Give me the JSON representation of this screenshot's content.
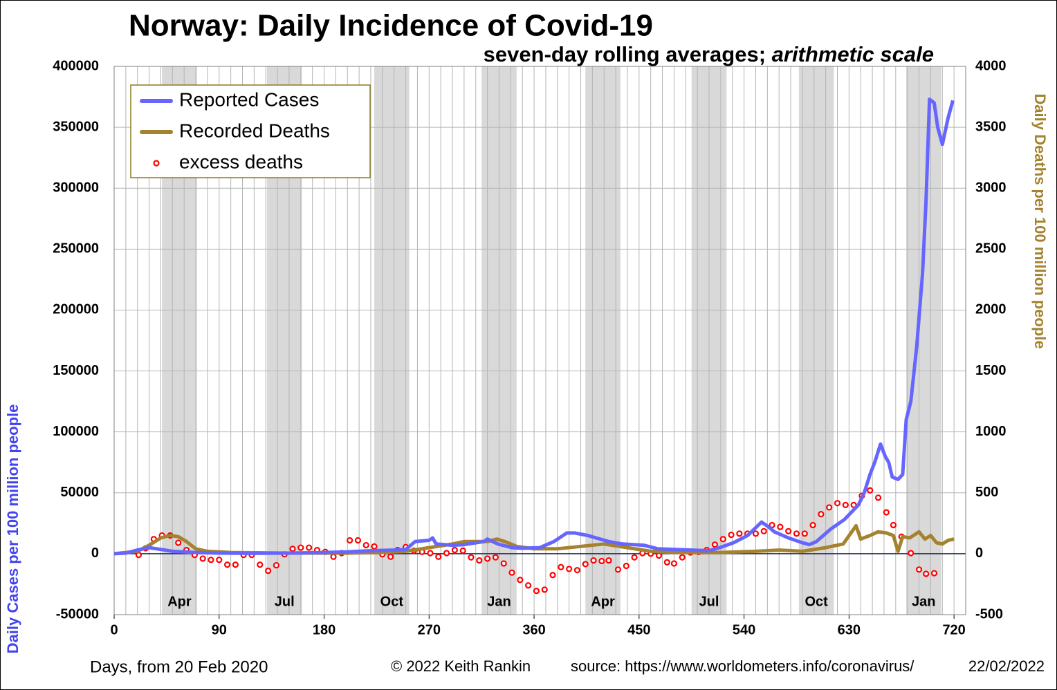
{
  "chart_data": {
    "type": "line",
    "title": "Norway: Daily Incidence of Covid-19",
    "subtitle": [
      "seven-day rolling averages; ",
      "arithmetic scale"
    ],
    "y_label": "Daily Cases per 100 million people",
    "y2_label": "Daily Deaths per 100 million people",
    "x_label": "Days,  from 20 Feb 2020",
    "credit": "© 2022  Keith Rankin",
    "source": "source: https://www.worldometers.info/coronavirus/",
    "date": "22/02/2022",
    "xlim": [
      0,
      730
    ],
    "xticks": [
      0,
      90,
      180,
      270,
      360,
      450,
      540,
      630,
      720
    ],
    "x_grid_step": 10,
    "ylim": [
      -50000,
      400000
    ],
    "yticks": [
      -50000,
      0,
      50000,
      100000,
      150000,
      200000,
      250000,
      300000,
      350000,
      400000
    ],
    "y2lim": [
      -500,
      4000
    ],
    "y2ticks": [
      -500,
      0,
      500,
      1000,
      1500,
      2000,
      2500,
      3000,
      3500,
      4000
    ],
    "grid": true,
    "legend": "top-left",
    "month_bands": [
      {
        "label": "Apr",
        "start": 41,
        "end": 71
      },
      {
        "label": "Jul",
        "start": 131,
        "end": 161
      },
      {
        "label": "Oct",
        "start": 223,
        "end": 253
      },
      {
        "label": "Jan",
        "start": 315,
        "end": 345
      },
      {
        "label": "Apr",
        "start": 404,
        "end": 434
      },
      {
        "label": "Jul",
        "start": 495,
        "end": 525
      },
      {
        "label": "Oct",
        "start": 587,
        "end": 617
      },
      {
        "label": "Jan",
        "start": 679,
        "end": 709
      }
    ],
    "series": [
      {
        "name": "Reported Cases",
        "color": "#6666ff",
        "mark": "line",
        "axis": "y",
        "x": [
          0,
          10,
          20,
          30,
          40,
          50,
          60,
          70,
          90,
          120,
          150,
          180,
          200,
          220,
          240,
          250,
          258,
          270,
          273,
          276,
          290,
          300,
          317,
          320,
          329,
          341,
          350,
          365,
          377,
          388,
          395,
          406,
          424,
          436,
          454,
          466,
          495,
          510,
          519,
          531,
          543,
          555,
          561,
          566,
          578,
          590,
          596,
          602,
          614,
          626,
          638,
          643,
          648,
          652,
          657,
          661,
          664,
          667,
          672,
          676,
          679,
          683,
          688,
          693,
          696,
          699,
          703,
          706,
          710,
          715,
          719
        ],
        "values": [
          0,
          500,
          3000,
          5000,
          3500,
          2000,
          1500,
          1000,
          500,
          300,
          500,
          1000,
          1500,
          2500,
          3000,
          3500,
          10000,
          11000,
          13000,
          8000,
          7000,
          7500,
          10000,
          12000,
          8000,
          5000,
          4500,
          5000,
          10000,
          17000,
          17000,
          15000,
          10000,
          8000,
          7000,
          4000,
          3000,
          2500,
          5000,
          9000,
          15000,
          26000,
          22000,
          18000,
          13000,
          9000,
          7500,
          10000,
          20000,
          28000,
          40000,
          50000,
          65000,
          75000,
          90000,
          80000,
          75000,
          63000,
          61000,
          65000,
          110000,
          125000,
          170000,
          230000,
          290000,
          373000,
          370000,
          350000,
          336000,
          358000,
          372000
        ]
      },
      {
        "name": "Recorded Deaths",
        "color": "#a5822f",
        "mark": "line",
        "axis": "y2",
        "x": [
          0,
          20,
          30,
          40,
          48,
          55,
          62,
          70,
          80,
          100,
          150,
          200,
          230,
          250,
          270,
          290,
          300,
          320,
          328,
          335,
          345,
          360,
          380,
          400,
          420,
          440,
          460,
          480,
          520,
          550,
          570,
          590,
          610,
          625,
          636,
          640,
          648,
          655,
          662,
          668,
          672,
          676,
          682,
          690,
          695,
          700,
          705,
          710,
          715,
          720
        ],
        "values": [
          0,
          20,
          70,
          130,
          150,
          140,
          100,
          40,
          20,
          10,
          5,
          5,
          10,
          20,
          50,
          80,
          100,
          100,
          120,
          100,
          60,
          40,
          40,
          60,
          80,
          50,
          20,
          10,
          10,
          20,
          30,
          20,
          50,
          80,
          230,
          120,
          150,
          180,
          170,
          150,
          20,
          140,
          130,
          180,
          120,
          150,
          90,
          80,
          110,
          120
        ]
      },
      {
        "name": "excess deaths",
        "color": "#ff0000",
        "mark": "circle",
        "axis": "y2",
        "x": [
          21,
          27,
          34,
          41,
          48,
          55,
          62,
          69,
          76,
          83,
          90,
          97,
          104,
          111,
          118,
          125,
          132,
          139,
          146,
          153,
          160,
          167,
          174,
          181,
          188,
          195,
          202,
          209,
          216,
          223,
          230,
          237,
          243,
          250,
          257,
          264,
          271,
          278,
          285,
          292,
          299,
          306,
          313,
          320,
          327,
          334,
          341,
          348,
          355,
          362,
          369,
          376,
          383,
          390,
          397,
          404,
          411,
          418,
          424,
          432,
          439,
          446,
          453,
          460,
          467,
          474,
          480,
          487,
          494,
          501,
          508,
          515,
          522,
          529,
          536,
          543,
          550,
          557,
          564,
          571,
          578,
          585,
          592,
          599,
          606,
          613,
          620,
          627,
          634,
          641,
          648,
          655,
          662,
          668,
          675,
          683,
          690,
          696,
          703
        ],
        "values": [
          -10,
          45,
          120,
          150,
          150,
          90,
          30,
          -10,
          -40,
          -50,
          -50,
          -90,
          -90,
          -10,
          -10,
          -90,
          -140,
          -95,
          -5,
          40,
          50,
          50,
          30,
          15,
          -25,
          5,
          110,
          110,
          70,
          60,
          -5,
          -25,
          30,
          55,
          25,
          15,
          5,
          -25,
          5,
          30,
          25,
          -30,
          -55,
          -40,
          -30,
          -80,
          -155,
          -215,
          -260,
          -305,
          -295,
          -175,
          -110,
          -125,
          -135,
          -85,
          -55,
          -60,
          -55,
          -130,
          -100,
          -30,
          5,
          0,
          -15,
          -70,
          -80,
          -30,
          10,
          15,
          30,
          75,
          120,
          155,
          165,
          165,
          165,
          185,
          235,
          220,
          185,
          165,
          165,
          235,
          325,
          380,
          415,
          400,
          400,
          475,
          520,
          460,
          340,
          235,
          140,
          5,
          -130,
          -165,
          -160
        ]
      }
    ]
  }
}
